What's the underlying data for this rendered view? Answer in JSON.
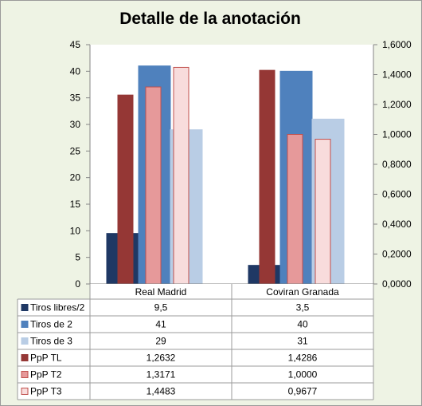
{
  "chart_data": {
    "type": "bar",
    "title": "Detalle de la anotación",
    "categories": [
      "Real Madrid",
      "Coviran Granada"
    ],
    "y_left_range": [
      0,
      45
    ],
    "y_left_ticks": [
      "0",
      "5",
      "10",
      "15",
      "20",
      "25",
      "30",
      "35",
      "40",
      "45"
    ],
    "y_right_range": [
      0,
      1.6
    ],
    "y_right_ticks": [
      "0,0000",
      "0,2000",
      "0,4000",
      "0,6000",
      "0,8000",
      "1,0000",
      "1,2000",
      "1,4000",
      "1,6000"
    ],
    "grid": false,
    "legend": "table-below",
    "series": [
      {
        "name": "Tiros libres/2",
        "axis": "left",
        "values": [
          9.5,
          3.5
        ],
        "labels": [
          "9,5",
          "3,5"
        ],
        "color": "#1f3864",
        "border": "#1f3864",
        "width_class": "wide"
      },
      {
        "name": "Tiros de 2",
        "axis": "left",
        "values": [
          41,
          40
        ],
        "labels": [
          "41",
          "40"
        ],
        "color": "#4f81bd",
        "border": "#4f81bd",
        "width_class": "wide"
      },
      {
        "name": "Tiros de 3",
        "axis": "left",
        "values": [
          29,
          31
        ],
        "labels": [
          "29",
          "31"
        ],
        "color": "#b9cde5",
        "border": "#b9cde5",
        "width_class": "wide"
      },
      {
        "name": "PpP TL",
        "axis": "right",
        "values": [
          1.2632,
          1.4286
        ],
        "labels": [
          "1,2632",
          "1,4286"
        ],
        "color": "#953735",
        "border": "#953735",
        "width_class": "narrow"
      },
      {
        "name": "PpP T2",
        "axis": "right",
        "values": [
          1.3171,
          1.0
        ],
        "labels": [
          "1,3171",
          "1,0000"
        ],
        "color": "#e6999a",
        "border": "#c0504d",
        "width_class": "narrow"
      },
      {
        "name": "PpP T3",
        "axis": "right",
        "values": [
          1.4483,
          0.9677
        ],
        "labels": [
          "1,4483",
          "0,9677"
        ],
        "color": "#f8dcdc",
        "border": "#c0504d",
        "width_class": "narrow"
      }
    ]
  }
}
